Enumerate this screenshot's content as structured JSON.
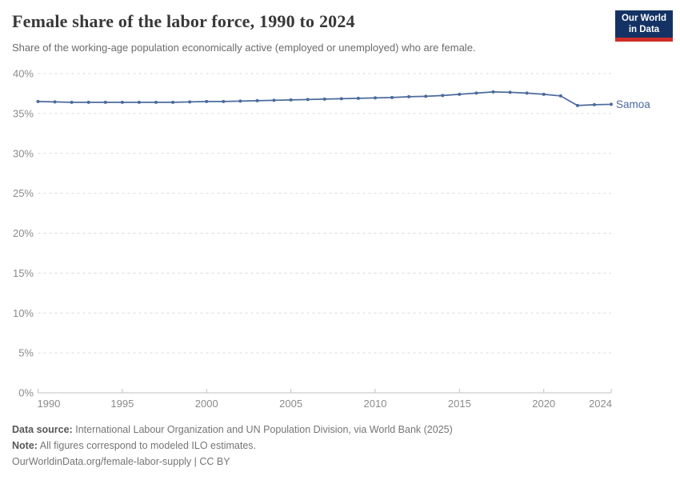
{
  "header": {
    "title": "Female share of the labor force, 1990 to 2024",
    "subtitle": "Share of the working-age population economically active (employed or unemployed) who are female.",
    "logo": {
      "line1": "Our World",
      "line2": "in Data",
      "bg_color": "#143364",
      "accent_color": "#cf2d27"
    }
  },
  "chart_data": {
    "type": "line",
    "title": "Female share of the labor force, 1990 to 2024",
    "xlabel": "",
    "ylabel": "",
    "xlim": [
      1990,
      2024
    ],
    "ylim": [
      0,
      40
    ],
    "grid": "horizontal-dashed",
    "legend": "end-of-line-label",
    "x_ticks": [
      1990,
      1995,
      2000,
      2005,
      2010,
      2015,
      2020,
      2024
    ],
    "y_ticks": [
      0,
      5,
      10,
      15,
      20,
      25,
      30,
      35,
      40
    ],
    "y_tick_suffix": "%",
    "x": [
      1990,
      1991,
      1992,
      1993,
      1994,
      1995,
      1996,
      1997,
      1998,
      1999,
      2000,
      2001,
      2002,
      2003,
      2004,
      2005,
      2006,
      2007,
      2008,
      2009,
      2010,
      2011,
      2012,
      2013,
      2014,
      2015,
      2016,
      2017,
      2018,
      2019,
      2020,
      2021,
      2022,
      2023,
      2024
    ],
    "series": [
      {
        "name": "Samoa",
        "color": "#4c6a9c",
        "values": [
          36.5,
          36.45,
          36.4,
          36.4,
          36.4,
          36.4,
          36.4,
          36.4,
          36.4,
          36.45,
          36.5,
          36.5,
          36.55,
          36.6,
          36.65,
          36.7,
          36.75,
          36.8,
          36.85,
          36.9,
          36.95,
          37.0,
          37.1,
          37.15,
          37.25,
          37.4,
          37.55,
          37.7,
          37.65,
          37.55,
          37.4,
          37.2,
          36.0,
          36.1,
          36.15
        ]
      }
    ],
    "colors": {
      "gridline": "#d9d9d9",
      "axis": "#c2c2c2",
      "tick_label": "#8b8b8b"
    }
  },
  "footer": {
    "source_label": "Data source:",
    "source_text": "International Labour Organization and UN Population Division, via World Bank (2025)",
    "note_label": "Note:",
    "note_text": "All figures correspond to modeled ILO estimates.",
    "url_line": "OurWorldinData.org/female-labor-supply | CC BY"
  }
}
